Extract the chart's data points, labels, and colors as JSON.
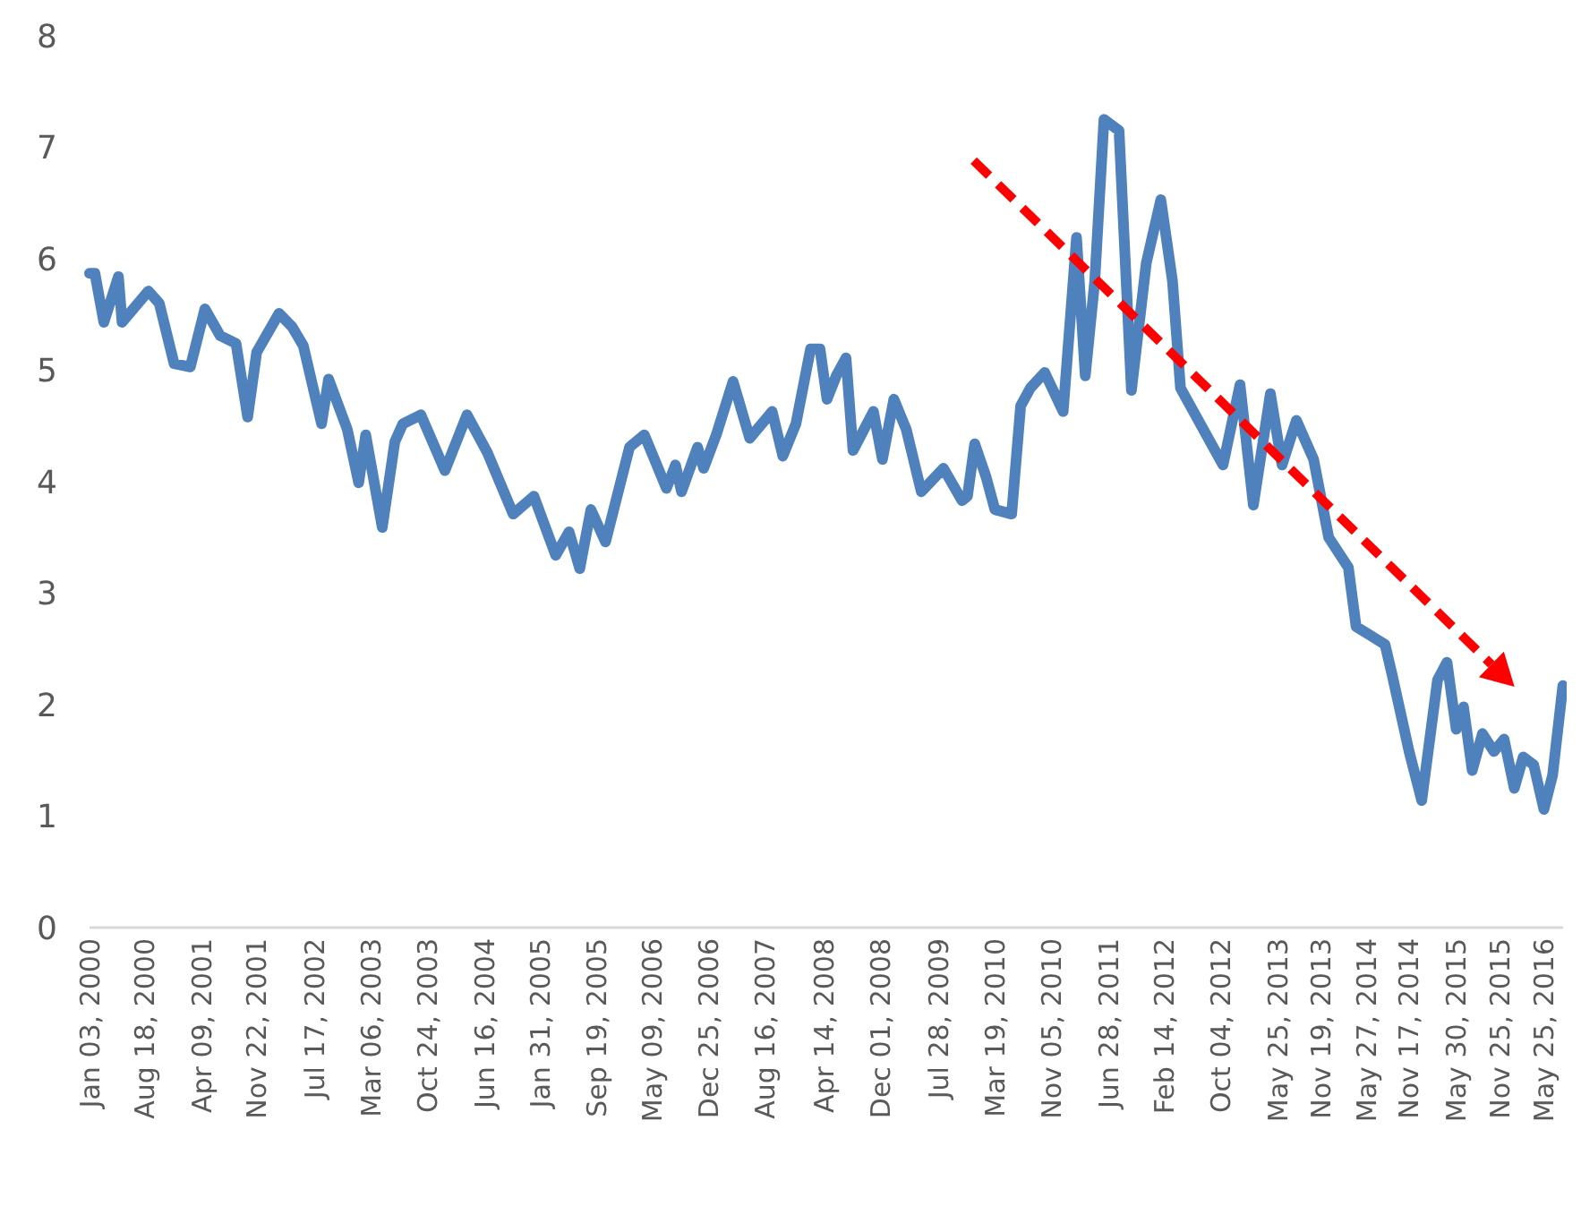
{
  "chart_data": {
    "type": "line",
    "xlim": [
      "2000-01-03",
      "2016-08-12"
    ],
    "xticks": [
      {
        "value": "2000-01-03",
        "label": "Jan 03, 2000"
      },
      {
        "value": "2000-08-18",
        "label": "Aug 18, 2000"
      },
      {
        "value": "2001-04-09",
        "label": "Apr 09, 2001"
      },
      {
        "value": "2001-11-22",
        "label": "Nov 22, 2001"
      },
      {
        "value": "2002-07-17",
        "label": "Jul 17, 2002"
      },
      {
        "value": "2003-03-06",
        "label": "Mar 06, 2003"
      },
      {
        "value": "2003-10-24",
        "label": "Oct 24, 2003"
      },
      {
        "value": "2004-06-16",
        "label": "Jun 16, 2004"
      },
      {
        "value": "2005-01-31",
        "label": "Jan 31, 2005"
      },
      {
        "value": "2005-09-19",
        "label": "Sep 19, 2005"
      },
      {
        "value": "2006-05-09",
        "label": "May 09, 2006"
      },
      {
        "value": "2006-12-25",
        "label": "Dec 25, 2006"
      },
      {
        "value": "2007-08-16",
        "label": "Aug 16, 2007"
      },
      {
        "value": "2008-04-14",
        "label": "Apr 14, 2008"
      },
      {
        "value": "2008-12-01",
        "label": "Dec 01, 2008"
      },
      {
        "value": "2009-07-28",
        "label": "Jul 28, 2009"
      },
      {
        "value": "2010-03-19",
        "label": "Mar 19, 2010"
      },
      {
        "value": "2010-11-05",
        "label": "Nov 05, 2010"
      },
      {
        "value": "2011-06-28",
        "label": "Jun 28, 2011"
      },
      {
        "value": "2012-02-14",
        "label": "Feb 14, 2012"
      },
      {
        "value": "2012-10-04",
        "label": "Oct 04, 2012"
      },
      {
        "value": "2013-05-25",
        "label": "May 25, 2013"
      },
      {
        "value": "2013-11-19",
        "label": "Nov 19, 2013"
      },
      {
        "value": "2014-05-27",
        "label": "May 27, 2014"
      },
      {
        "value": "2014-11-17",
        "label": "Nov 17, 2014"
      },
      {
        "value": "2015-05-30",
        "label": "May 30, 2015"
      },
      {
        "value": "2015-11-25",
        "label": "Nov 25, 2015"
      },
      {
        "value": "2016-05-25",
        "label": "May 25, 2016"
      }
    ],
    "ylim": [
      0,
      8
    ],
    "yticks": [
      0,
      1,
      2,
      3,
      4,
      5,
      6,
      7,
      8
    ],
    "grid": false,
    "marker": "none",
    "line_style": "solid",
    "series": [
      {
        "color": "#4f81bd",
        "x": [
          "2000-01-03",
          "2000-01-25",
          "2000-03-02",
          "2000-05-01",
          "2000-05-16",
          "2000-09-01",
          "2000-10-16",
          "2000-12-16",
          "2001-02-21",
          "2001-04-22",
          "2001-06-24",
          "2001-08-28",
          "2001-10-15",
          "2001-11-21",
          "2002-02-21",
          "2002-04-16",
          "2002-06-01",
          "2002-08-15",
          "2002-09-13",
          "2002-11-29",
          "2003-01-15",
          "2003-02-13",
          "2003-04-22",
          "2003-06-13",
          "2003-07-16",
          "2003-09-28",
          "2004-01-05",
          "2004-04-05",
          "2004-06-28",
          "2004-10-12",
          "2005-01-05",
          "2005-04-05",
          "2005-05-30",
          "2005-07-13",
          "2005-08-28",
          "2005-10-27",
          "2006-02-03",
          "2006-04-05",
          "2006-07-05",
          "2006-08-11",
          "2006-09-05",
          "2006-11-10",
          "2006-12-05",
          "2007-01-26",
          "2007-04-05",
          "2007-06-13",
          "2007-09-13",
          "2007-10-27",
          "2007-12-20",
          "2008-02-18",
          "2008-03-28",
          "2008-04-26",
          "2008-06-03",
          "2008-07-13",
          "2008-08-11",
          "2008-11-03",
          "2008-12-10",
          "2009-01-26",
          "2009-03-18",
          "2009-05-19",
          "2009-08-18",
          "2009-11-03",
          "2009-11-25",
          "2009-12-25",
          "2010-02-10",
          "2010-03-18",
          "2010-05-26",
          "2010-07-02",
          "2010-08-11",
          "2010-10-09",
          "2010-12-24",
          "2011-02-17",
          "2011-03-25",
          "2011-05-03",
          "2011-06-10",
          "2011-08-11",
          "2011-10-01",
          "2011-12-01",
          "2012-01-30",
          "2012-03-18",
          "2012-04-20",
          "2012-10-12",
          "2012-12-21",
          "2013-02-14",
          "2013-04-25",
          "2013-06-12",
          "2013-08-10",
          "2013-10-20",
          "2013-12-21",
          "2014-03-12",
          "2014-04-13",
          "2014-08-10",
          "2014-09-08",
          "2014-11-17",
          "2015-01-08",
          "2015-03-14",
          "2015-04-22",
          "2015-05-30",
          "2015-06-29",
          "2015-08-04",
          "2015-09-15",
          "2015-11-01",
          "2015-12-13",
          "2016-01-24",
          "2016-03-01",
          "2016-04-13",
          "2016-05-25",
          "2016-06-30",
          "2016-08-11"
        ],
        "values": [
          5.87,
          5.87,
          5.43,
          5.84,
          5.43,
          5.71,
          5.6,
          5.06,
          5.03,
          5.55,
          5.31,
          5.24,
          4.58,
          5.16,
          5.51,
          5.39,
          5.22,
          4.52,
          4.92,
          4.47,
          3.99,
          4.42,
          3.59,
          4.36,
          4.52,
          4.6,
          4.1,
          4.6,
          4.26,
          3.71,
          3.87,
          3.34,
          3.55,
          3.22,
          3.75,
          3.46,
          4.31,
          4.42,
          3.94,
          4.15,
          3.91,
          4.31,
          4.12,
          4.42,
          4.9,
          4.39,
          4.63,
          4.23,
          4.52,
          5.19,
          5.19,
          4.74,
          4.95,
          5.11,
          4.28,
          4.63,
          4.2,
          4.74,
          4.47,
          3.91,
          4.12,
          3.83,
          3.87,
          4.34,
          4.04,
          3.75,
          3.71,
          4.68,
          4.84,
          4.98,
          4.63,
          6.19,
          4.95,
          5.8,
          7.25,
          7.15,
          4.82,
          5.96,
          6.53,
          5.8,
          4.84,
          4.15,
          4.87,
          3.79,
          4.79,
          4.15,
          4.55,
          4.2,
          3.5,
          3.23,
          2.7,
          2.54,
          2.27,
          1.58,
          1.14,
          2.22,
          2.38,
          1.78,
          1.98,
          1.41,
          1.74,
          1.58,
          1.69,
          1.25,
          1.53,
          1.46,
          1.06,
          1.37,
          2.17
        ]
      }
    ]
  }
}
